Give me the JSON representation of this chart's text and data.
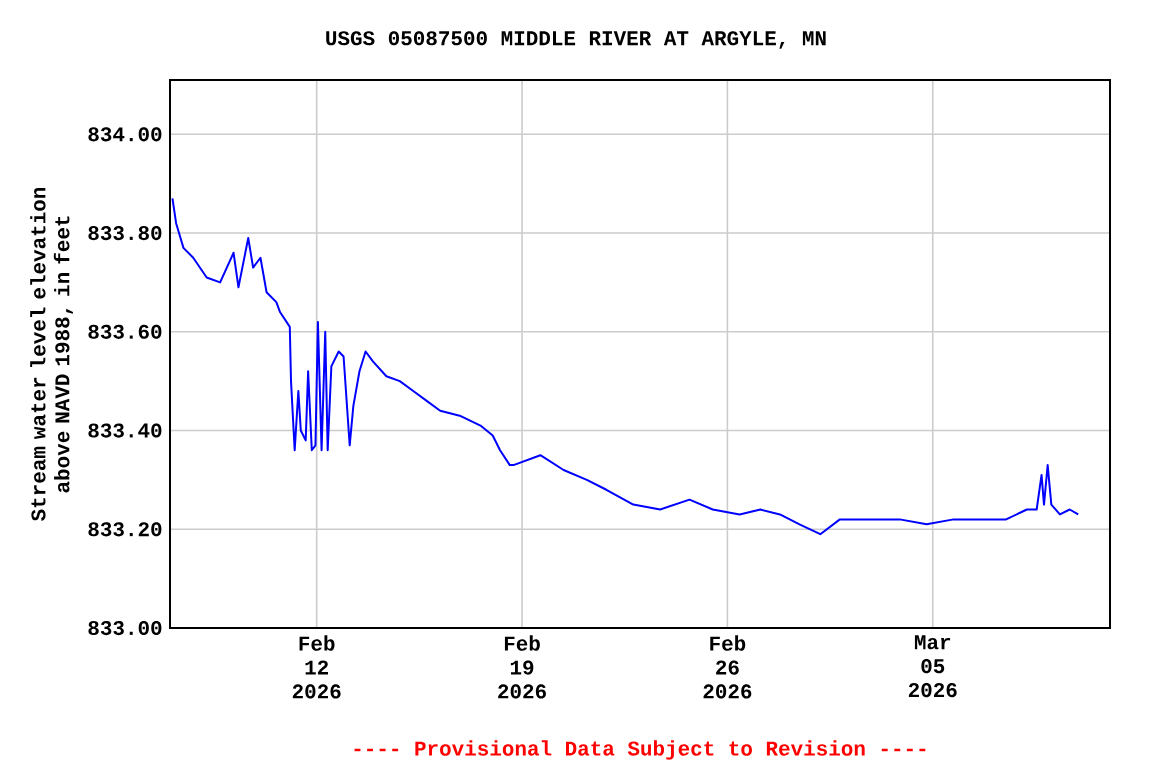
{
  "chart_data": {
    "type": "line",
    "title": "USGS 05087500 MIDDLE RIVER AT ARGYLE, MN",
    "ylabel": "Stream water level elevation above NAVD 1988, in feet",
    "annotations": [
      "---- Provisional Data Subject to Revision ----"
    ],
    "xlim": [
      "2026-02-07T00:00",
      "2026-03-11T01:00"
    ],
    "ylim": [
      833.0,
      834.11
    ],
    "xticks": [
      {
        "value": "2026-02-12",
        "label": "Feb 12 2026"
      },
      {
        "value": "2026-02-19",
        "label": "Feb 19 2026"
      },
      {
        "value": "2026-02-26",
        "label": "Feb 26 2026"
      },
      {
        "value": "2026-03-05",
        "label": "Mar 05 2026"
      }
    ],
    "yticks": [
      {
        "value": 833.0,
        "label": "833.00"
      },
      {
        "value": 833.2,
        "label": "833.20"
      },
      {
        "value": 833.4,
        "label": "833.40"
      },
      {
        "value": 833.6,
        "label": "833.60"
      },
      {
        "value": 833.8,
        "label": "833.80"
      },
      {
        "value": 834.0,
        "label": "834.00"
      }
    ],
    "grid": true,
    "x": [
      "2026-02-07T02:00",
      "2026-02-07T05:00",
      "2026-02-07T11:00",
      "2026-02-07T19:00",
      "2026-02-08T06:00",
      "2026-02-08T17:00",
      "2026-02-09T04:00",
      "2026-02-09T08:00",
      "2026-02-09T16:00",
      "2026-02-09T20:00",
      "2026-02-10T02:00",
      "2026-02-10T07:00",
      "2026-02-10T15:00",
      "2026-02-10T18:00",
      "2026-02-11T02:00",
      "2026-02-11T03:00",
      "2026-02-11T06:00",
      "2026-02-11T09:00",
      "2026-02-11T11:00",
      "2026-02-11T15:00",
      "2026-02-11T17:00",
      "2026-02-11T20:00",
      "2026-02-11T23:00",
      "2026-02-12T01:00",
      "2026-02-12T04:00",
      "2026-02-12T07:00",
      "2026-02-12T09:00",
      "2026-02-12T12:00",
      "2026-02-12T18:00",
      "2026-02-12T22:00",
      "2026-02-13T03:00",
      "2026-02-13T06:00",
      "2026-02-13T11:00",
      "2026-02-13T16:00",
      "2026-02-13T22:00",
      "2026-02-14T09:00",
      "2026-02-14T20:00",
      "2026-02-15T07:00",
      "2026-02-15T18:00",
      "2026-02-16T05:00",
      "2026-02-16T21:00",
      "2026-02-17T14:00",
      "2026-02-18T00:00",
      "2026-02-18T06:00",
      "2026-02-18T14:00",
      "2026-02-18T17:00",
      "2026-02-19T15:00",
      "2026-02-20T10:00",
      "2026-02-21T05:00",
      "2026-02-21T21:00",
      "2026-02-22T19:00",
      "2026-02-23T17:00",
      "2026-02-24T17:00",
      "2026-02-25T12:00",
      "2026-02-26T10:00",
      "2026-02-27T03:00",
      "2026-02-27T19:00",
      "2026-02-28T11:00",
      "2026-03-01T04:00",
      "2026-03-01T20:00",
      "2026-03-02T23:00",
      "2026-03-03T21:00",
      "2026-03-04T19:00",
      "2026-03-05T17:00",
      "2026-03-06T15:00",
      "2026-03-07T12:00",
      "2026-03-08T05:00",
      "2026-03-08T13:00",
      "2026-03-08T17:00",
      "2026-03-08T19:00",
      "2026-03-08T22:00",
      "2026-03-09T01:00",
      "2026-03-09T08:00",
      "2026-03-09T16:00",
      "2026-03-09T23:00"
    ],
    "series": [
      {
        "color": "#0000ff",
        "values": [
          833.87,
          833.82,
          833.77,
          833.75,
          833.71,
          833.7,
          833.76,
          833.69,
          833.79,
          833.73,
          833.75,
          833.68,
          833.66,
          833.64,
          833.61,
          833.5,
          833.36,
          833.48,
          833.4,
          833.38,
          833.52,
          833.36,
          833.37,
          833.62,
          833.36,
          833.6,
          833.36,
          833.53,
          833.56,
          833.55,
          833.37,
          833.45,
          833.52,
          833.56,
          833.54,
          833.51,
          833.5,
          833.48,
          833.46,
          833.44,
          833.43,
          833.41,
          833.39,
          833.36,
          833.33,
          833.33,
          833.35,
          833.32,
          833.3,
          833.28,
          833.25,
          833.24,
          833.26,
          833.24,
          833.23,
          833.24,
          833.23,
          833.21,
          833.19,
          833.22,
          833.22,
          833.22,
          833.21,
          833.22,
          833.22,
          833.22,
          833.24,
          833.24,
          833.31,
          833.25,
          833.33,
          833.25,
          833.23,
          833.24,
          833.23
        ]
      }
    ]
  }
}
